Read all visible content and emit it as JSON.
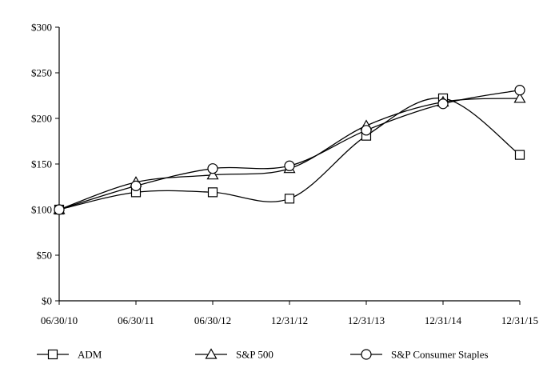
{
  "chart_data": {
    "type": "line",
    "categories": [
      "06/30/10",
      "06/30/11",
      "06/30/12",
      "12/31/12",
      "12/31/13",
      "12/31/14",
      "12/31/15"
    ],
    "ylim": [
      0,
      300
    ],
    "yticks": [
      0,
      50,
      100,
      150,
      200,
      250,
      300
    ],
    "ytick_labels": [
      "$0",
      "$50",
      "$100",
      "$150",
      "$200",
      "$250",
      "$300"
    ],
    "grid": false,
    "legend_position": "bottom",
    "series": [
      {
        "name": "ADM",
        "marker": "square",
        "color": "#000000",
        "values": [
          100,
          119,
          119,
          112,
          181,
          222,
          160
        ]
      },
      {
        "name": "S&P 500",
        "marker": "triangle",
        "color": "#000000",
        "values": [
          100,
          130,
          138,
          145,
          192,
          218,
          222
        ]
      },
      {
        "name": "S&P Consumer Staples",
        "marker": "circle",
        "color": "#000000",
        "values": [
          100,
          126,
          145,
          148,
          187,
          216,
          231
        ]
      }
    ]
  }
}
